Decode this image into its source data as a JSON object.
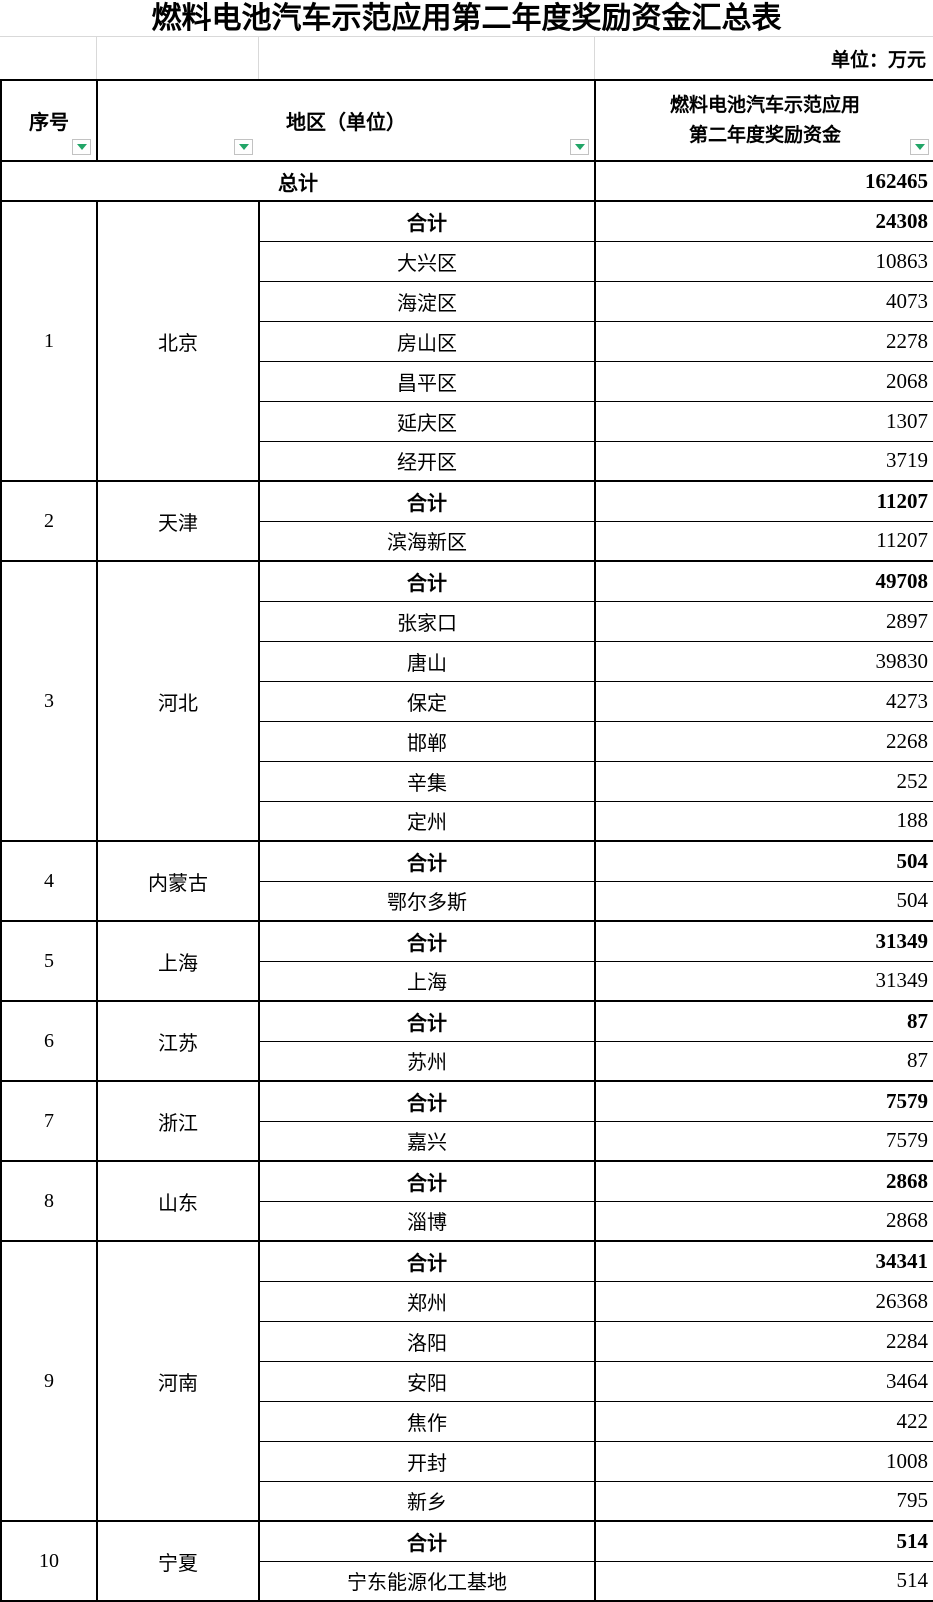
{
  "title": "燃料电池汽车示范应用第二年度奖励资金汇总表",
  "unit_note": "单位：万元",
  "colors": {
    "filter_arrow_green": "#21A567",
    "grid_light": "#D9D9D9",
    "border_black": "#000000"
  },
  "icons": {
    "filter_dropdown": "triangle-down"
  },
  "table": {
    "header": {
      "col_index": "序号",
      "col_region": "地区（单位）",
      "col_value_line1": "燃料电池汽车示范应用",
      "col_value_line2": "第二年度奖励资金"
    },
    "grand_total": {
      "label": "总计",
      "value": "162465"
    },
    "subtotal_label": "合计",
    "groups": [
      {
        "index": "1",
        "province": "北京",
        "subtotal": "24308",
        "cities": [
          [
            "大兴区",
            "10863"
          ],
          [
            "海淀区",
            "4073"
          ],
          [
            "房山区",
            "2278"
          ],
          [
            "昌平区",
            "2068"
          ],
          [
            "延庆区",
            "1307"
          ],
          [
            "经开区",
            "3719"
          ]
        ]
      },
      {
        "index": "2",
        "province": "天津",
        "subtotal": "11207",
        "cities": [
          [
            "滨海新区",
            "11207"
          ]
        ]
      },
      {
        "index": "3",
        "province": "河北",
        "subtotal": "49708",
        "cities": [
          [
            "张家口",
            "2897"
          ],
          [
            "唐山",
            "39830"
          ],
          [
            "保定",
            "4273"
          ],
          [
            "邯郸",
            "2268"
          ],
          [
            "辛集",
            "252"
          ],
          [
            "定州",
            "188"
          ]
        ]
      },
      {
        "index": "4",
        "province": "内蒙古",
        "subtotal": "504",
        "cities": [
          [
            "鄂尔多斯",
            "504"
          ]
        ]
      },
      {
        "index": "5",
        "province": "上海",
        "subtotal": "31349",
        "cities": [
          [
            "上海",
            "31349"
          ]
        ]
      },
      {
        "index": "6",
        "province": "江苏",
        "subtotal": "87",
        "cities": [
          [
            "苏州",
            "87"
          ]
        ]
      },
      {
        "index": "7",
        "province": "浙江",
        "subtotal": "7579",
        "cities": [
          [
            "嘉兴",
            "7579"
          ]
        ]
      },
      {
        "index": "8",
        "province": "山东",
        "subtotal": "2868",
        "cities": [
          [
            "淄博",
            "2868"
          ]
        ]
      },
      {
        "index": "9",
        "province": "河南",
        "subtotal": "34341",
        "cities": [
          [
            "郑州",
            "26368"
          ],
          [
            "洛阳",
            "2284"
          ],
          [
            "安阳",
            "3464"
          ],
          [
            "焦作",
            "422"
          ],
          [
            "开封",
            "1008"
          ],
          [
            "新乡",
            "795"
          ]
        ]
      },
      {
        "index": "10",
        "province": "宁夏",
        "subtotal": "514",
        "cities": [
          [
            "宁东能源化工基地",
            "514"
          ]
        ]
      }
    ]
  }
}
